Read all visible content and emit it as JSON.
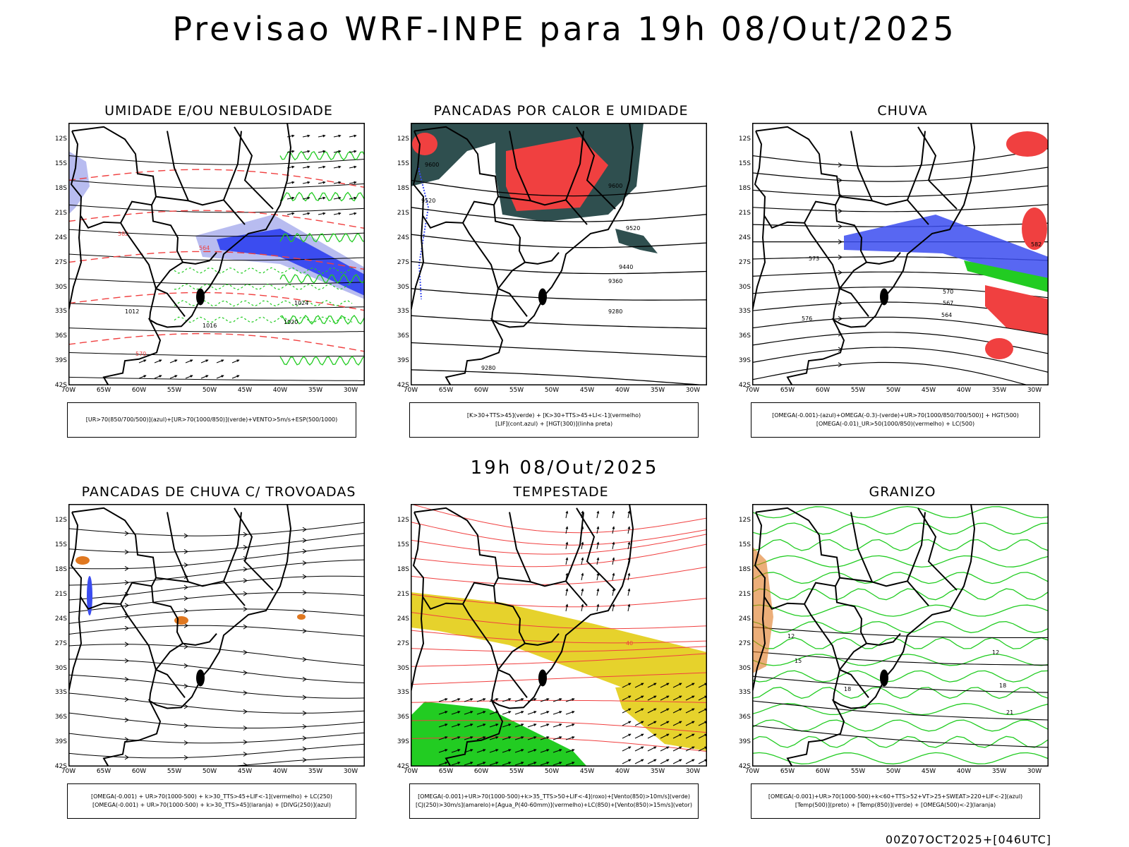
{
  "main_title": "Previsao WRF-INPE  para 19h 08/Out/2025",
  "mid_date": "19h 08/Out/2025",
  "footer": "00Z07OCT2025+[046UTC]",
  "lat_labels": [
    "12S",
    "15S",
    "18S",
    "21S",
    "24S",
    "27S",
    "30S",
    "33S",
    "36S",
    "39S",
    "42S"
  ],
  "lon_labels": [
    "70W",
    "65W",
    "60W",
    "55W",
    "50W",
    "45W",
    "40W",
    "35W",
    "30W"
  ],
  "colors": {
    "blue": "#3b4cf0",
    "light_blue": "#b8bcf0",
    "green": "#22cc22",
    "red": "#f04040",
    "dark_teal": "#2f4f4f",
    "yellow": "#e6d22c",
    "orange": "#e07820"
  },
  "panels": [
    {
      "title": "UMIDADE E/OU NEBULOSIDADE",
      "legend": [
        "[UR>70(850/700/500)](azul)+[UR>70(1000/850)](verde)+VENTO>5m/s+ESP(500/1000)"
      ],
      "contour_labels": [
        "1016",
        "1020",
        "1024",
        "1012",
        "570",
        "582",
        "564"
      ]
    },
    {
      "title": "PANCADAS POR CALOR E UMIDADE",
      "legend": [
        "[K>30+TTS>45](verde) + [K>30+TTS>45+LI<-1](vermelho)",
        "[LIF](cont.azul) + [HGT(300)](linha preta)"
      ],
      "contour_labels": [
        "9600",
        "9520",
        "9440",
        "9360",
        "9280"
      ]
    },
    {
      "title": "CHUVA",
      "legend": [
        "[OMEGA(-0.001)-(azul)+OMEGA(-0.3)-(verde)+UR>70(1000/850/700/500)] + HGT(500)",
        "[OMEGA(-0.01)_UR>50(1000/850)(vermelho) + LC(500)"
      ],
      "contour_labels": [
        "576",
        "573",
        "570",
        "567",
        "564",
        "582"
      ]
    },
    {
      "title": "PANCADAS DE CHUVA C/ TROVOADAS",
      "legend": [
        "[OMEGA(-0.001) + UR>70(1000-500) + k>30_TTS>45+LIF<-1](vermelho) + LC(250)",
        "[OMEGA(-0.001) + UR>70(1000-500) + k>30_TTS>45](laranja) + [DIVG(250)](azul)"
      ],
      "contour_labels": []
    },
    {
      "title": "TEMPESTADE",
      "legend": [
        "[OMEGA(-0.001)+UR>70(1000-500)+k>35_TTS>50+LIF<-4](roxo)+[Vento(850)>10m/s](verde)",
        "[CJ(250)>30m/s](amarelo)+[Agua_P(40-60mm)](vermelho)+LC(850)+[Vento(850)>15m/s](vetor)"
      ],
      "contour_labels": [
        "40"
      ]
    },
    {
      "title": "GRANIZO",
      "legend": [
        "[OMEGA(-0.001)+UR>70(1000-500)+k<60+TTS>52+VT>25+SWEAT>220+LIF<-2](azul)",
        "[Temp(500)](preto) + [Temp(850)](verde) + [OMEGA(500)<-2](laranja)"
      ],
      "contour_labels": [
        "12",
        "15",
        "18",
        "21"
      ]
    }
  ]
}
